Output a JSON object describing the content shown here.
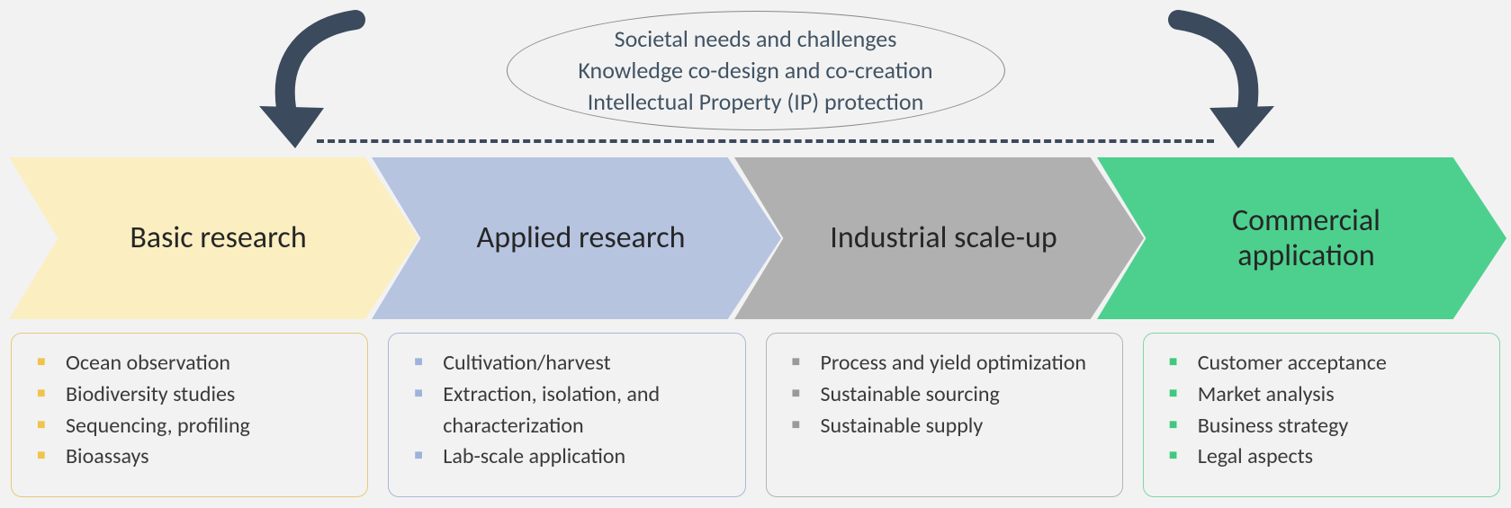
{
  "diagram": {
    "type": "flowchart",
    "background_color": "#f2f2f2",
    "text_color": "#3a3a3a",
    "accent_dark": "#3b4a5c",
    "top": {
      "lines": [
        "Societal needs and challenges",
        "Knowledge co-design and co-creation",
        "Intellectual Property (IP) protection"
      ],
      "text_color": "#415364",
      "ellipse_border_color": "#888888",
      "dash_color": "#3b4a5c",
      "arrow_color": "#3b4a5c"
    },
    "stages": [
      {
        "title": "Basic research",
        "fill": "#fbeec1",
        "bullet_color": "#f0c44c",
        "box_border": "#e8c97a",
        "items": [
          "Ocean observation",
          "Biodiversity studies",
          "Sequencing, profiling",
          "Bioassays"
        ]
      },
      {
        "title": "Applied research",
        "fill": "#b6c4e0",
        "bullet_color": "#9fb3d9",
        "box_border": "#a9b9d8",
        "items": [
          "Cultivation/harvest",
          "Extraction, isolation, and characterization",
          "Lab-scale application"
        ]
      },
      {
        "title": "Industrial scale-up",
        "fill": "#b0b0b0",
        "bullet_color": "#9a9a9a",
        "box_border": "#b5b5b5",
        "items": [
          "Process and yield optimization",
          "Sustainable sourcing",
          "Sustainable supply"
        ]
      },
      {
        "title": "Commercial application",
        "fill": "#4dd08e",
        "bullet_color": "#3fc97f",
        "box_border": "#7fd6a8",
        "items": [
          "Customer acceptance",
          "Market analysis",
          "Business strategy",
          "Legal aspects"
        ]
      }
    ],
    "label_fontsize": 34,
    "top_fontsize": 26,
    "item_fontsize": 24
  }
}
